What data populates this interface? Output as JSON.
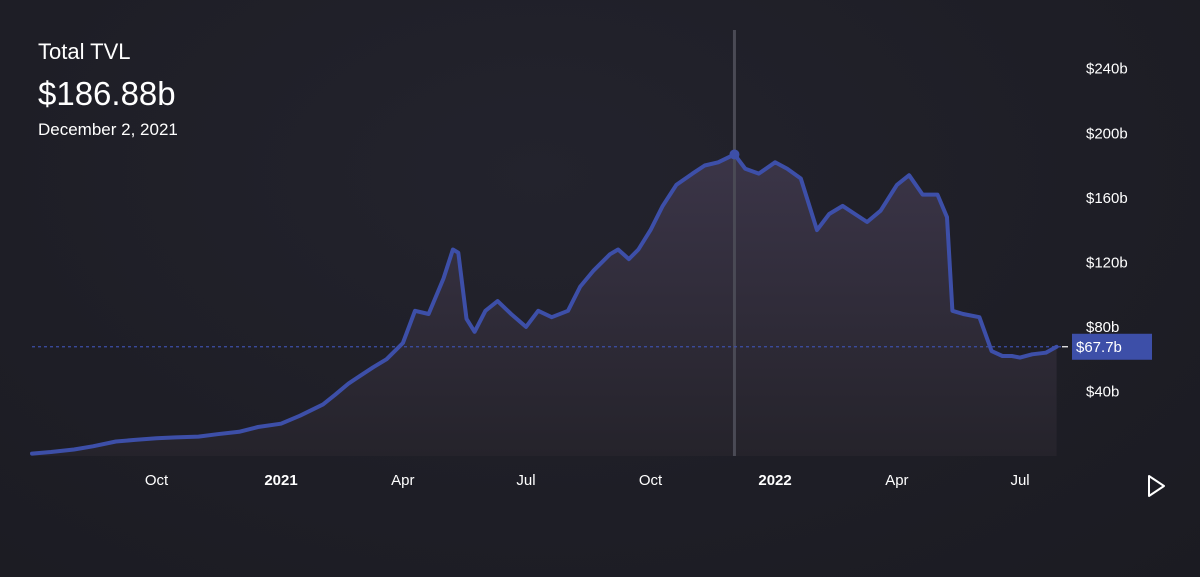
{
  "header": {
    "metric_label": "Total TVL",
    "metric_value": "$186.88b",
    "metric_date": "December 2, 2021"
  },
  "colors": {
    "line": "#3d4fa8",
    "area_top": "#3b3548",
    "area_bottom": "#25232b",
    "crosshair": "#4a4a55",
    "badge_bg": "#3d4fa8",
    "dashed_line": "#3d4fa8"
  },
  "current_value_label": "$67.7b",
  "play_icon": "play-icon",
  "chart_data": {
    "type": "area",
    "title": "Total TVL",
    "xlabel": "",
    "ylabel": "",
    "y_unit": "billions USD",
    "ylim": [
      0,
      264
    ],
    "xlim": [
      "2020-07-01",
      "2022-08-01"
    ],
    "y_ticks": [
      {
        "value": 40,
        "label": "$40b"
      },
      {
        "value": 80,
        "label": "$80b"
      },
      {
        "value": 120,
        "label": "$120b"
      },
      {
        "value": 160,
        "label": "$160b"
      },
      {
        "value": 200,
        "label": "$200b"
      },
      {
        "value": 240,
        "label": "$240b"
      }
    ],
    "x_ticks": [
      {
        "date": "2020-10-01",
        "label": "Oct",
        "bold": false
      },
      {
        "date": "2021-01-01",
        "label": "2021",
        "bold": true
      },
      {
        "date": "2021-04-01",
        "label": "Apr",
        "bold": false
      },
      {
        "date": "2021-07-01",
        "label": "Jul",
        "bold": false
      },
      {
        "date": "2021-10-01",
        "label": "Oct",
        "bold": false
      },
      {
        "date": "2022-01-01",
        "label": "2022",
        "bold": true
      },
      {
        "date": "2022-04-01",
        "label": "Apr",
        "bold": false
      },
      {
        "date": "2022-07-01",
        "label": "Jul",
        "bold": false
      }
    ],
    "highlight": {
      "date": "2021-12-02",
      "value": 186.88
    },
    "current": {
      "value": 67.7
    },
    "series": [
      {
        "x": [
          "2020-07-01",
          "2020-07-15",
          "2020-08-01",
          "2020-08-15",
          "2020-09-01",
          "2020-09-15",
          "2020-10-01",
          "2020-10-15",
          "2020-11-01",
          "2020-11-15",
          "2020-12-01",
          "2020-12-15",
          "2021-01-01",
          "2021-01-15",
          "2021-02-01",
          "2021-02-10",
          "2021-02-20",
          "2021-03-01",
          "2021-03-10",
          "2021-03-20",
          "2021-04-01",
          "2021-04-10",
          "2021-04-20",
          "2021-05-01",
          "2021-05-08",
          "2021-05-12",
          "2021-05-18",
          "2021-05-24",
          "2021-06-01",
          "2021-06-10",
          "2021-06-20",
          "2021-07-01",
          "2021-07-10",
          "2021-07-20",
          "2021-08-01",
          "2021-08-10",
          "2021-08-20",
          "2021-09-01",
          "2021-09-07",
          "2021-09-15",
          "2021-09-22",
          "2021-10-01",
          "2021-10-10",
          "2021-10-20",
          "2021-11-01",
          "2021-11-10",
          "2021-11-20",
          "2021-12-02",
          "2021-12-10",
          "2021-12-20",
          "2022-01-01",
          "2022-01-10",
          "2022-01-20",
          "2022-02-01",
          "2022-02-10",
          "2022-02-20",
          "2022-03-01",
          "2022-03-10",
          "2022-03-20",
          "2022-04-01",
          "2022-04-10",
          "2022-04-20",
          "2022-05-01",
          "2022-05-08",
          "2022-05-12",
          "2022-05-20",
          "2022-06-01",
          "2022-06-10",
          "2022-06-18",
          "2022-06-25",
          "2022-07-01",
          "2022-07-10",
          "2022-07-20",
          "2022-07-28"
        ],
        "y": [
          1.5,
          2.5,
          4,
          6,
          9,
          10,
          11,
          11.5,
          12,
          13.5,
          15,
          18,
          20,
          25,
          32,
          38,
          45,
          50,
          55,
          60,
          70,
          90,
          88,
          110,
          128,
          126,
          85,
          77,
          90,
          96,
          88,
          80,
          90,
          86,
          90,
          105,
          115,
          125,
          128,
          122,
          128,
          140,
          155,
          168,
          175,
          180,
          182,
          186.88,
          178,
          175,
          182,
          178,
          172,
          140,
          150,
          155,
          150,
          145,
          152,
          168,
          174,
          162,
          162,
          148,
          90,
          88,
          86,
          65,
          62,
          62,
          61,
          63,
          64,
          67.7
        ]
      }
    ]
  }
}
